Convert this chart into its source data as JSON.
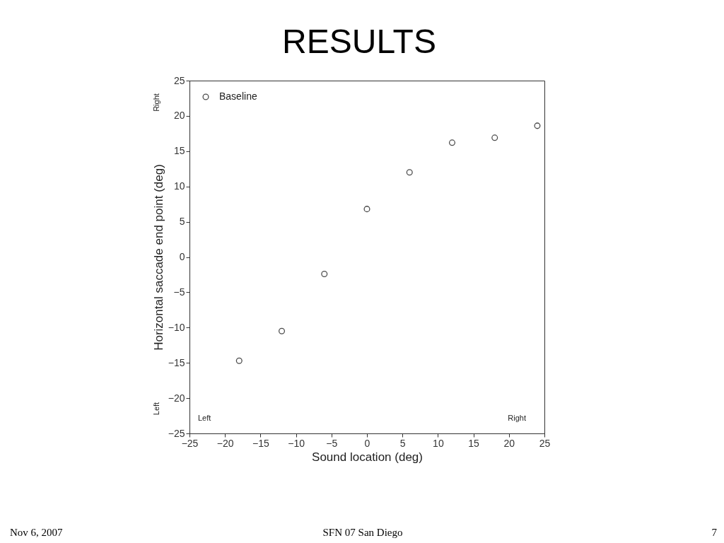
{
  "chart_data": {
    "type": "scatter",
    "title": "RESULTS",
    "xlabel": "Sound location (deg)",
    "ylabel": "Horizontal saccade end point (deg)",
    "x": [
      -18,
      -12,
      -6,
      0,
      6,
      12,
      18,
      24
    ],
    "series": [
      {
        "name": "Baseline",
        "color": "#000000",
        "values": [
          -14.7,
          -10.5,
          -2.4,
          6.8,
          12.0,
          16.2,
          16.9,
          18.6
        ]
      }
    ],
    "xlim": [
      -25,
      25
    ],
    "ylim": [
      -25,
      25
    ],
    "xticks": [
      -25,
      -20,
      -15,
      -10,
      -5,
      0,
      5,
      10,
      15,
      20,
      25
    ],
    "yticks": [
      -25,
      -20,
      -15,
      -10,
      -5,
      0,
      5,
      10,
      15,
      20,
      25
    ],
    "marker": "circle",
    "legend": "top left",
    "grid": false,
    "annotations": [
      "Right",
      "Left",
      "Left",
      "Right",
      "Nov 6, 2007",
      "SFN 07 San Diego",
      "7"
    ]
  }
}
